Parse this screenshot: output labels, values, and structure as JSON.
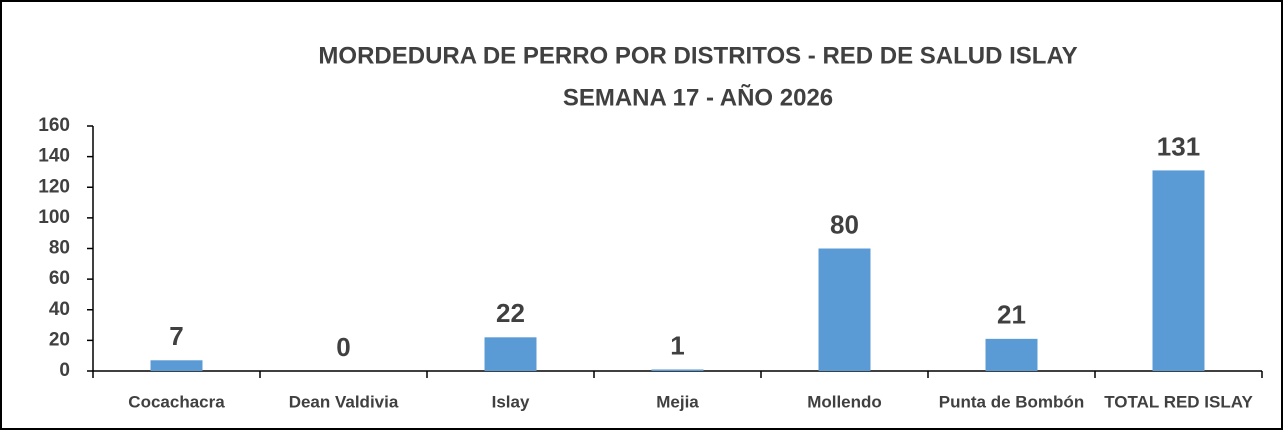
{
  "chart_data": {
    "type": "bar",
    "title": "MORDEDURA DE PERRO POR DISTRITOS - RED DE SALUD ISLAY",
    "subtitle": "SEMANA  17 -  AÑO 2026",
    "categories": [
      "Cocachacra",
      "Dean Valdivia",
      "Islay",
      "Mejia",
      "Mollendo",
      "Punta de Bombón",
      "TOTAL RED ISLAY"
    ],
    "values": [
      7,
      0,
      22,
      1,
      80,
      21,
      131
    ],
    "color": "#5b9bd5",
    "ylim": [
      0,
      160
    ],
    "yticks": [
      0,
      20,
      40,
      60,
      80,
      100,
      120,
      140,
      160
    ],
    "grid": false
  }
}
